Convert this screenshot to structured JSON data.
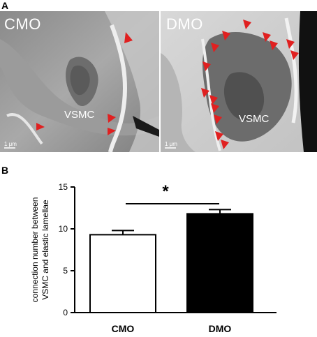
{
  "panel_a": {
    "letter": "A",
    "left_image": {
      "label": "CMO",
      "cell_label": "VSMC",
      "scale": "1 μm"
    },
    "right_image": {
      "label": "DMO",
      "cell_label": "VSMC",
      "scale": "1 μm"
    }
  },
  "panel_b": {
    "letter": "B"
  },
  "chart_data": {
    "type": "bar",
    "categories": [
      "CMO",
      "DMO"
    ],
    "values": [
      9.3,
      11.8
    ],
    "errors": [
      0.5,
      0.5
    ],
    "bar_colors": [
      "#ffffff",
      "#000000"
    ],
    "ylabel_lines": [
      "connection number between",
      "VSMC and elastic lamellae"
    ],
    "ylim": [
      0,
      15
    ],
    "yticks": [
      "0",
      "5",
      "10",
      "15"
    ],
    "significance": "*",
    "grid": false
  }
}
